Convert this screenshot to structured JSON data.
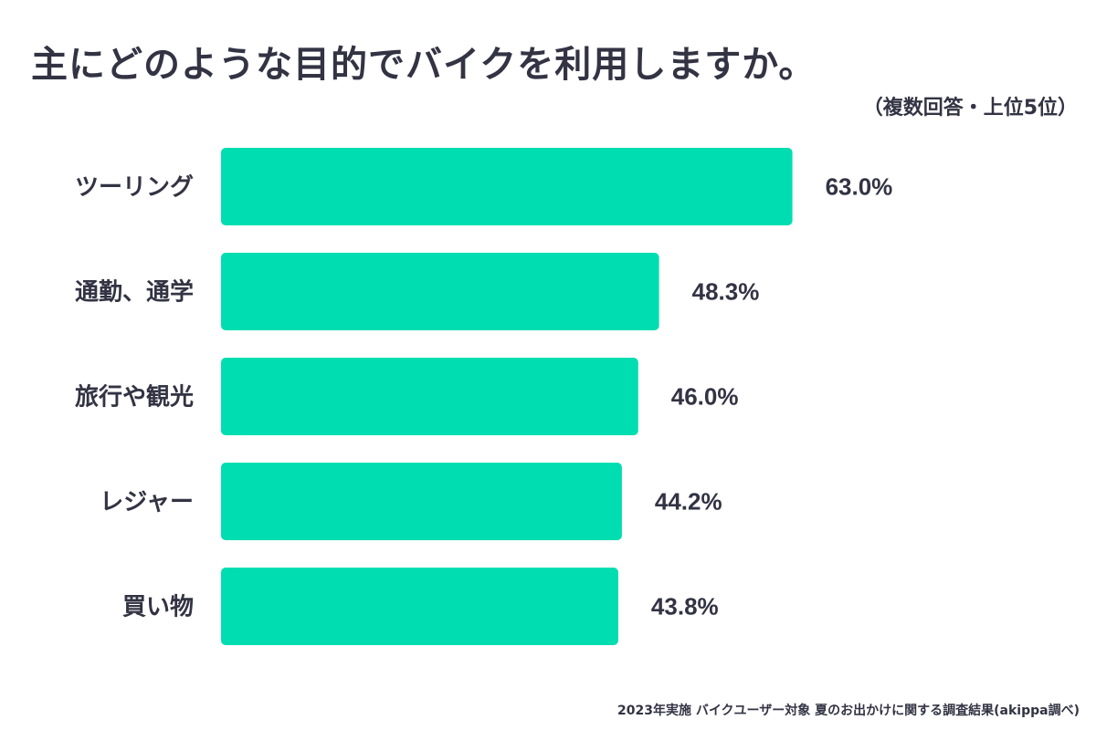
{
  "title": "主にどのような目的でバイクを利用しますか。",
  "subtitle": "（複数回答・上位5位）",
  "footnote": "2023年実施 バイクユーザー対象 夏のお出かけに関する調査結果(akippa調べ)",
  "chart_data": {
    "type": "bar",
    "orientation": "horizontal",
    "title": "主にどのような目的でバイクを利用しますか。",
    "subtitle": "（複数回答・上位5位）",
    "categories": [
      "ツーリング",
      "通勤、通学",
      "旅行や観光",
      "レジャー",
      "買い物"
    ],
    "values": [
      63.0,
      48.3,
      46.0,
      44.2,
      43.8
    ],
    "value_labels": [
      "63.0%",
      "48.3%",
      "46.0%",
      "44.2%",
      "43.8%"
    ],
    "unit": "%",
    "xlim": [
      0,
      100
    ],
    "grid": false,
    "legend": "none",
    "bar_color": "#00DDB0"
  }
}
